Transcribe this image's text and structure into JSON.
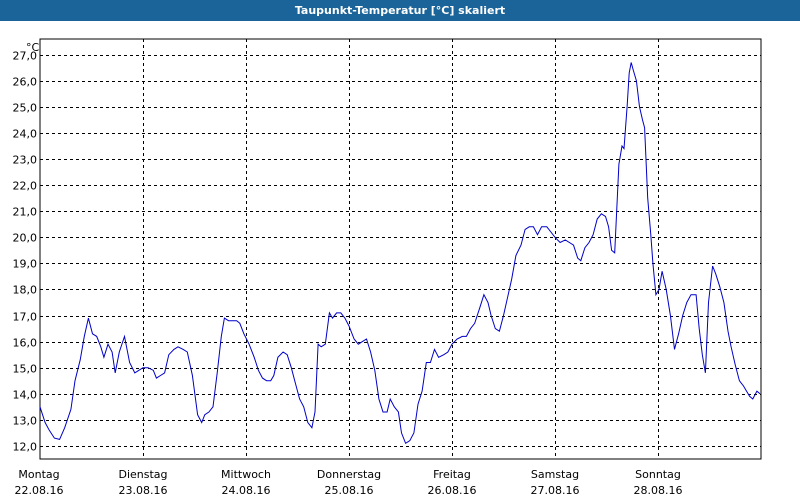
{
  "window": {
    "title": "Taupunkt-Temperatur [°C] skaliert"
  },
  "chart_data": {
    "type": "line",
    "title": "Taupunkt-Temperatur [°C] skaliert",
    "ylabel": "°C",
    "xlabel": "",
    "ylim": [
      11.5,
      27.6
    ],
    "yticks": [
      "12,0",
      "13,0",
      "14,0",
      "15,0",
      "16,0",
      "17,0",
      "18,0",
      "19,0",
      "20,0",
      "21,0",
      "22,0",
      "23,0",
      "24,0",
      "25,0",
      "26,0",
      "27,0"
    ],
    "ytick_values": [
      12,
      13,
      14,
      15,
      16,
      17,
      18,
      19,
      20,
      21,
      22,
      23,
      24,
      25,
      26,
      27
    ],
    "xlim": [
      0,
      7
    ],
    "x_categories": [
      {
        "day": "Montag",
        "date": "22.08.16"
      },
      {
        "day": "Dienstag",
        "date": "23.08.16"
      },
      {
        "day": "Mittwoch",
        "date": "24.08.16"
      },
      {
        "day": "Donnerstag",
        "date": "25.08.16"
      },
      {
        "day": "Freitag",
        "date": "26.08.16"
      },
      {
        "day": "Samstag",
        "date": "27.08.16"
      },
      {
        "day": "Sonntag",
        "date": "28.08.16"
      }
    ],
    "grid": true,
    "line_color": "#0000c8",
    "series": [
      {
        "values": [
          [
            0.0,
            13.5
          ],
          [
            0.05,
            12.9
          ],
          [
            0.09,
            12.6
          ],
          [
            0.14,
            12.3
          ],
          [
            0.19,
            12.25
          ],
          [
            0.24,
            12.7
          ],
          [
            0.3,
            13.4
          ],
          [
            0.34,
            14.5
          ],
          [
            0.39,
            15.3
          ],
          [
            0.43,
            16.2
          ],
          [
            0.47,
            16.9
          ],
          [
            0.51,
            16.3
          ],
          [
            0.55,
            16.2
          ],
          [
            0.59,
            15.8
          ],
          [
            0.62,
            15.4
          ],
          [
            0.66,
            15.9
          ],
          [
            0.7,
            15.6
          ],
          [
            0.73,
            14.8
          ],
          [
            0.77,
            15.6
          ],
          [
            0.82,
            16.2
          ],
          [
            0.87,
            15.2
          ],
          [
            0.92,
            14.8
          ],
          [
            0.96,
            14.9
          ],
          [
            1.0,
            15.0
          ],
          [
            1.05,
            15.0
          ],
          [
            1.1,
            14.9
          ],
          [
            1.13,
            14.6
          ],
          [
            1.17,
            14.7
          ],
          [
            1.21,
            14.8
          ],
          [
            1.25,
            15.5
          ],
          [
            1.3,
            15.7
          ],
          [
            1.34,
            15.8
          ],
          [
            1.39,
            15.7
          ],
          [
            1.43,
            15.6
          ],
          [
            1.48,
            14.7
          ],
          [
            1.53,
            13.2
          ],
          [
            1.57,
            12.9
          ],
          [
            1.6,
            13.2
          ],
          [
            1.64,
            13.3
          ],
          [
            1.68,
            13.5
          ],
          [
            1.72,
            14.8
          ],
          [
            1.76,
            16.2
          ],
          [
            1.79,
            16.9
          ],
          [
            1.83,
            16.8
          ],
          [
            1.87,
            16.8
          ],
          [
            1.91,
            16.8
          ],
          [
            1.94,
            16.7
          ],
          [
            1.98,
            16.3
          ],
          [
            2.03,
            15.9
          ],
          [
            2.08,
            15.4
          ],
          [
            2.12,
            14.9
          ],
          [
            2.16,
            14.6
          ],
          [
            2.2,
            14.5
          ],
          [
            2.24,
            14.5
          ],
          [
            2.27,
            14.7
          ],
          [
            2.31,
            15.4
          ],
          [
            2.36,
            15.6
          ],
          [
            2.4,
            15.5
          ],
          [
            2.44,
            15.0
          ],
          [
            2.48,
            14.4
          ],
          [
            2.52,
            13.8
          ],
          [
            2.56,
            13.5
          ],
          [
            2.6,
            12.9
          ],
          [
            2.64,
            12.7
          ],
          [
            2.67,
            13.3
          ],
          [
            2.7,
            15.9
          ],
          [
            2.73,
            15.8
          ],
          [
            2.77,
            15.9
          ],
          [
            2.81,
            17.1
          ],
          [
            2.84,
            16.9
          ],
          [
            2.88,
            17.1
          ],
          [
            2.92,
            17.1
          ],
          [
            2.96,
            16.9
          ],
          [
            3.0,
            16.6
          ],
          [
            3.05,
            16.1
          ],
          [
            3.09,
            15.9
          ],
          [
            3.13,
            16.0
          ],
          [
            3.17,
            16.1
          ],
          [
            3.21,
            15.6
          ],
          [
            3.25,
            14.9
          ],
          [
            3.29,
            13.8
          ],
          [
            3.33,
            13.3
          ],
          [
            3.37,
            13.3
          ],
          [
            3.4,
            13.8
          ],
          [
            3.44,
            13.5
          ],
          [
            3.48,
            13.3
          ],
          [
            3.51,
            12.5
          ],
          [
            3.55,
            12.1
          ],
          [
            3.59,
            12.2
          ],
          [
            3.63,
            12.5
          ],
          [
            3.67,
            13.6
          ],
          [
            3.71,
            14.1
          ],
          [
            3.75,
            15.2
          ],
          [
            3.79,
            15.2
          ],
          [
            3.83,
            15.7
          ],
          [
            3.87,
            15.4
          ],
          [
            3.92,
            15.5
          ],
          [
            3.96,
            15.6
          ],
          [
            4.0,
            15.9
          ],
          [
            4.05,
            16.1
          ],
          [
            4.1,
            16.2
          ],
          [
            4.14,
            16.2
          ],
          [
            4.18,
            16.5
          ],
          [
            4.22,
            16.7
          ],
          [
            4.27,
            17.3
          ],
          [
            4.31,
            17.8
          ],
          [
            4.35,
            17.5
          ],
          [
            4.38,
            17.0
          ],
          [
            4.42,
            16.5
          ],
          [
            4.46,
            16.4
          ],
          [
            4.5,
            17.0
          ],
          [
            4.54,
            17.7
          ],
          [
            4.58,
            18.4
          ],
          [
            4.62,
            19.3
          ],
          [
            4.67,
            19.7
          ],
          [
            4.71,
            20.3
          ],
          [
            4.75,
            20.4
          ],
          [
            4.79,
            20.4
          ],
          [
            4.83,
            20.1
          ],
          [
            4.87,
            20.4
          ],
          [
            4.92,
            20.4
          ],
          [
            4.96,
            20.2
          ],
          [
            5.0,
            20.0
          ],
          [
            5.05,
            19.8
          ],
          [
            5.1,
            19.9
          ],
          [
            5.14,
            19.8
          ],
          [
            5.18,
            19.7
          ],
          [
            5.22,
            19.2
          ],
          [
            5.25,
            19.1
          ],
          [
            5.29,
            19.6
          ],
          [
            5.33,
            19.8
          ],
          [
            5.37,
            20.1
          ],
          [
            5.41,
            20.7
          ],
          [
            5.45,
            20.9
          ],
          [
            5.49,
            20.8
          ],
          [
            5.52,
            20.4
          ],
          [
            5.55,
            19.5
          ],
          [
            5.58,
            19.4
          ],
          [
            5.62,
            22.8
          ],
          [
            5.65,
            23.5
          ],
          [
            5.67,
            23.4
          ],
          [
            5.7,
            25.0
          ],
          [
            5.72,
            26.3
          ],
          [
            5.74,
            26.7
          ],
          [
            5.76,
            26.4
          ],
          [
            5.79,
            26.0
          ],
          [
            5.82,
            25.0
          ],
          [
            5.85,
            24.5
          ],
          [
            5.87,
            24.2
          ],
          [
            5.9,
            21.5
          ],
          [
            5.93,
            20.1
          ],
          [
            5.95,
            19.0
          ],
          [
            5.98,
            17.8
          ],
          [
            6.01,
            18.0
          ],
          [
            6.04,
            18.7
          ],
          [
            6.08,
            18.0
          ],
          [
            6.12,
            17.0
          ],
          [
            6.16,
            15.7
          ],
          [
            6.2,
            16.3
          ],
          [
            6.24,
            17.0
          ],
          [
            6.28,
            17.5
          ],
          [
            6.32,
            17.8
          ],
          [
            6.37,
            17.8
          ],
          [
            6.4,
            16.5
          ],
          [
            6.43,
            15.5
          ],
          [
            6.46,
            14.8
          ],
          [
            6.49,
            17.5
          ],
          [
            6.53,
            18.9
          ],
          [
            6.56,
            18.6
          ],
          [
            6.6,
            18.1
          ],
          [
            6.64,
            17.5
          ],
          [
            6.68,
            16.4
          ],
          [
            6.71,
            15.8
          ],
          [
            6.75,
            15.1
          ],
          [
            6.79,
            14.5
          ],
          [
            6.83,
            14.3
          ],
          [
            6.86,
            14.1
          ],
          [
            6.89,
            13.9
          ],
          [
            6.92,
            13.8
          ],
          [
            6.96,
            14.1
          ],
          [
            6.99,
            14.0
          ]
        ]
      }
    ]
  }
}
